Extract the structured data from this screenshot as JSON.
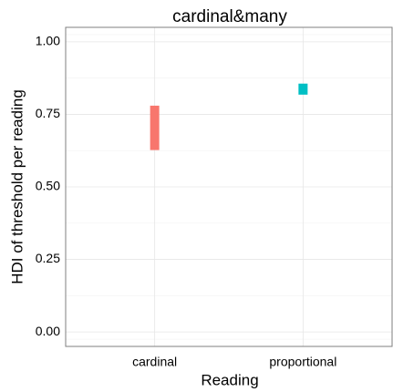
{
  "chart_data": {
    "type": "range-bar",
    "title": "cardinal&many",
    "x_label": "Reading",
    "y_label": "HDI of threshold per reading",
    "categories": [
      "cardinal",
      "proportional"
    ],
    "low": [
      0.627,
      0.818
    ],
    "high": [
      0.78,
      0.856
    ],
    "colors": [
      "#f8766d",
      "#00bfc4"
    ],
    "ylim": [
      -0.05,
      1.05
    ],
    "yticks": [
      {
        "value": 0,
        "label": "0.00"
      },
      {
        "value": 0.25,
        "label": "0.25"
      },
      {
        "value": 0.5,
        "label": "0.50"
      },
      {
        "value": 0.75,
        "label": "0.75"
      },
      {
        "value": 1,
        "label": "1.00"
      }
    ],
    "grid": true
  }
}
